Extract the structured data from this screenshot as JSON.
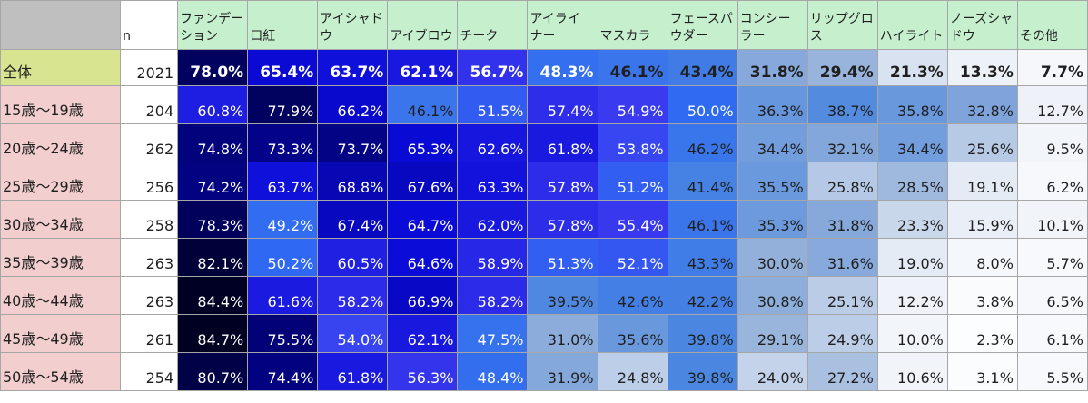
{
  "chart_data": {
    "type": "table",
    "n_header": "n",
    "columns": [
      "ファンデーション",
      "口紅",
      "アイシャドウ",
      "アイブロウ",
      "チーク",
      "アイライナー",
      "マスカラ",
      "フェースパウダー",
      "コンシーラー",
      "リップグロス",
      "ハイライト",
      "ノーズシャドウ",
      "その他"
    ],
    "header_lines": [
      [
        "ファンデー",
        "ション"
      ],
      [
        "口紅"
      ],
      [
        "アイシャド",
        "ウ"
      ],
      [
        "アイブロウ"
      ],
      [
        "チーク"
      ],
      [
        "アイライ",
        "ナー"
      ],
      [
        "マスカラ"
      ],
      [
        "フェースパ",
        "ウダー"
      ],
      [
        "コンシー",
        "ラー"
      ],
      [
        "リップグロ",
        "ス"
      ],
      [
        "ハイライト"
      ],
      [
        "ノーズシャ",
        "ドウ"
      ],
      [
        "その他"
      ]
    ],
    "rows": [
      {
        "label": "全体",
        "n": "2021",
        "values": [
          "78.0%",
          "65.4%",
          "63.7%",
          "62.1%",
          "56.7%",
          "48.3%",
          "46.1%",
          "43.4%",
          "31.8%",
          "29.4%",
          "21.3%",
          "13.3%",
          "7.7%"
        ]
      },
      {
        "label": "15歳〜19歳",
        "n": "204",
        "values": [
          "60.8%",
          "77.9%",
          "66.2%",
          "46.1%",
          "51.5%",
          "57.4%",
          "54.9%",
          "50.0%",
          "36.3%",
          "38.7%",
          "35.8%",
          "32.8%",
          "12.7%"
        ]
      },
      {
        "label": "20歳〜24歳",
        "n": "262",
        "values": [
          "74.8%",
          "73.3%",
          "73.7%",
          "65.3%",
          "62.6%",
          "61.8%",
          "53.8%",
          "46.2%",
          "34.4%",
          "32.1%",
          "34.4%",
          "25.6%",
          "9.5%"
        ]
      },
      {
        "label": "25歳〜29歳",
        "n": "256",
        "values": [
          "74.2%",
          "63.7%",
          "68.8%",
          "67.6%",
          "63.3%",
          "57.8%",
          "51.2%",
          "41.4%",
          "35.5%",
          "25.8%",
          "28.5%",
          "19.1%",
          "6.2%"
        ]
      },
      {
        "label": "30歳〜34歳",
        "n": "258",
        "values": [
          "78.3%",
          "49.2%",
          "67.4%",
          "64.7%",
          "62.0%",
          "57.8%",
          "55.4%",
          "46.1%",
          "35.3%",
          "31.8%",
          "23.3%",
          "15.9%",
          "10.1%"
        ]
      },
      {
        "label": "35歳〜39歳",
        "n": "263",
        "values": [
          "82.1%",
          "50.2%",
          "60.5%",
          "64.6%",
          "58.9%",
          "51.3%",
          "52.1%",
          "43.3%",
          "30.0%",
          "31.6%",
          "19.0%",
          "8.0%",
          "5.7%"
        ]
      },
      {
        "label": "40歳〜44歳",
        "n": "263",
        "values": [
          "84.4%",
          "61.6%",
          "58.2%",
          "66.9%",
          "58.2%",
          "39.5%",
          "42.6%",
          "42.2%",
          "30.8%",
          "25.1%",
          "12.2%",
          "3.8%",
          "6.5%"
        ]
      },
      {
        "label": "45歳〜49歳",
        "n": "261",
        "values": [
          "84.7%",
          "75.5%",
          "54.0%",
          "62.1%",
          "47.5%",
          "31.0%",
          "35.6%",
          "39.8%",
          "29.1%",
          "24.9%",
          "10.0%",
          "2.3%",
          "6.1%"
        ]
      },
      {
        "label": "50歳〜54歳",
        "n": "254",
        "values": [
          "80.7%",
          "74.4%",
          "61.8%",
          "56.3%",
          "48.4%",
          "31.9%",
          "24.8%",
          "39.8%",
          "24.0%",
          "27.2%",
          "10.6%",
          "3.1%",
          "5.5%"
        ]
      }
    ],
    "heatmap": {
      "palette": [
        "#ffffff",
        "#e4eaf4",
        "#93b0da",
        "#4a86e0",
        "#2f6af2",
        "#3a3af0",
        "#0a0ad8",
        "#02027a",
        "#000020"
      ],
      "stops": [
        0,
        20,
        30,
        40,
        50,
        55,
        65,
        75,
        85
      ]
    }
  }
}
